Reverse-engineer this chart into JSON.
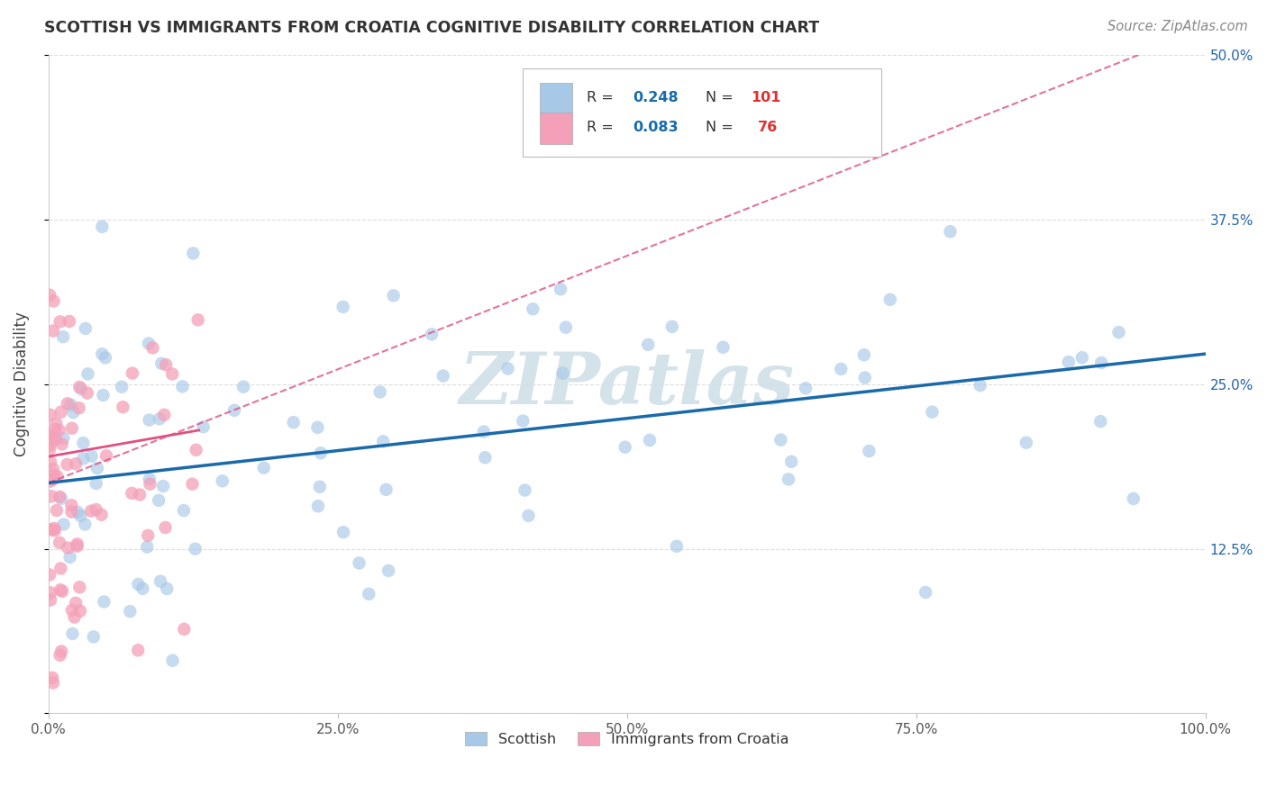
{
  "title": "SCOTTISH VS IMMIGRANTS FROM CROATIA COGNITIVE DISABILITY CORRELATION CHART",
  "source": "Source: ZipAtlas.com",
  "ylabel": "Cognitive Disability",
  "xlim": [
    0.0,
    1.0
  ],
  "ylim": [
    0.0,
    0.5
  ],
  "xticks": [
    0.0,
    0.25,
    0.5,
    0.75,
    1.0
  ],
  "xtick_labels": [
    "0.0%",
    "25.0%",
    "50.0%",
    "75.0%",
    "100.0%"
  ],
  "yticks": [
    0.0,
    0.125,
    0.25,
    0.375,
    0.5
  ],
  "ytick_labels": [
    "",
    "12.5%",
    "25.0%",
    "37.5%",
    "50.0%"
  ],
  "legend_label1": "Scottish",
  "legend_label2": "Immigrants from Croatia",
  "blue_color": "#a8c8e8",
  "pink_color": "#f4a0b8",
  "blue_line_color": "#1a6aaa",
  "pink_line_color": "#e05080",
  "grid_color": "#dddddd",
  "watermark_color": "#d0dfe8",
  "title_color": "#333333",
  "source_color": "#888888",
  "axis_label_color": "#444444",
  "right_tick_color": "#2166ac",
  "R1": "0.248",
  "N1": "101",
  "R2": "0.083",
  "N2": "76"
}
